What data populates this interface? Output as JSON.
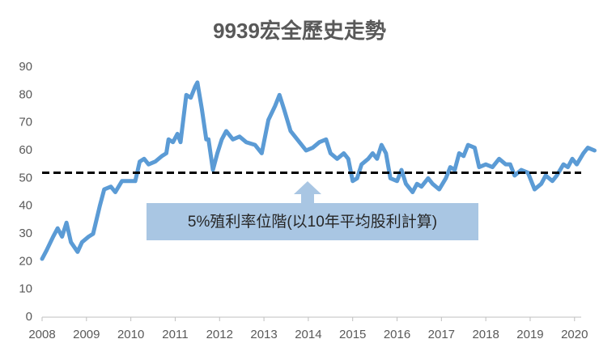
{
  "chart_data": {
    "type": "line",
    "title": "9939宏全歷史走勢",
    "annotation": "5%殖利率位階(以10年平均股利計算)",
    "reference_line": 52,
    "xlim": [
      2008,
      2020.15
    ],
    "xticks": [
      2008,
      2009,
      2010,
      2011,
      2012,
      2013,
      2014,
      2015,
      2016,
      2017,
      2018,
      2019,
      2020
    ],
    "ylim": [
      0,
      90
    ],
    "yticks": [
      0,
      10,
      20,
      30,
      40,
      50,
      60,
      70,
      80,
      90
    ],
    "grid": false,
    "x": [
      2008.0,
      2008.1,
      2008.25,
      2008.35,
      2008.45,
      2008.55,
      2008.65,
      2008.8,
      2008.9,
      2009.05,
      2009.15,
      2009.3,
      2009.4,
      2009.55,
      2009.65,
      2009.8,
      2009.95,
      2010.1,
      2010.2,
      2010.3,
      2010.4,
      2010.55,
      2010.7,
      2010.8,
      2010.85,
      2010.95,
      2011.05,
      2011.12,
      2011.25,
      2011.35,
      2011.45,
      2011.5,
      2011.6,
      2011.7,
      2011.75,
      2011.85,
      2011.95,
      2012.05,
      2012.15,
      2012.3,
      2012.45,
      2012.6,
      2012.8,
      2012.95,
      2013.1,
      2013.25,
      2013.35,
      2013.45,
      2013.6,
      2013.8,
      2013.95,
      2014.1,
      2014.25,
      2014.4,
      2014.5,
      2014.65,
      2014.8,
      2014.9,
      2015.0,
      2015.1,
      2015.2,
      2015.35,
      2015.45,
      2015.55,
      2015.65,
      2015.75,
      2015.85,
      2016.0,
      2016.1,
      2016.2,
      2016.35,
      2016.45,
      2016.55,
      2016.7,
      2016.8,
      2016.95,
      2017.1,
      2017.2,
      2017.3,
      2017.4,
      2017.5,
      2017.6,
      2017.75,
      2017.85,
      2018.0,
      2018.15,
      2018.3,
      2018.45,
      2018.55,
      2018.65,
      2018.8,
      2018.95,
      2019.1,
      2019.25,
      2019.35,
      2019.5,
      2019.6,
      2019.75,
      2019.85,
      2019.95,
      2020.05,
      2020.2,
      2020.3,
      2020.45
    ],
    "series": [
      {
        "name": "9939",
        "color": "#5b9bd5",
        "values": [
          21,
          24,
          29,
          32,
          29,
          34,
          27,
          23.5,
          27,
          29,
          30,
          40,
          46,
          47,
          45,
          49,
          49,
          49,
          56,
          57,
          55,
          56,
          58,
          59,
          64,
          63,
          66,
          63,
          80,
          79,
          83,
          84.5,
          75,
          64,
          64,
          53,
          59,
          64,
          67,
          64,
          65,
          63,
          62,
          59,
          71,
          76,
          80,
          75,
          67,
          63,
          60,
          61,
          63,
          64,
          59,
          57,
          59,
          57,
          49,
          50,
          55,
          57,
          59,
          57,
          62,
          59,
          50,
          49,
          53,
          48,
          45,
          48,
          47,
          50,
          48,
          46,
          50,
          54,
          53,
          59,
          58,
          62,
          61,
          54,
          55,
          54,
          57,
          55,
          55,
          51,
          53,
          52,
          46,
          48,
          51,
          49,
          51,
          55,
          54,
          57,
          55,
          59,
          61,
          60
        ]
      }
    ]
  }
}
